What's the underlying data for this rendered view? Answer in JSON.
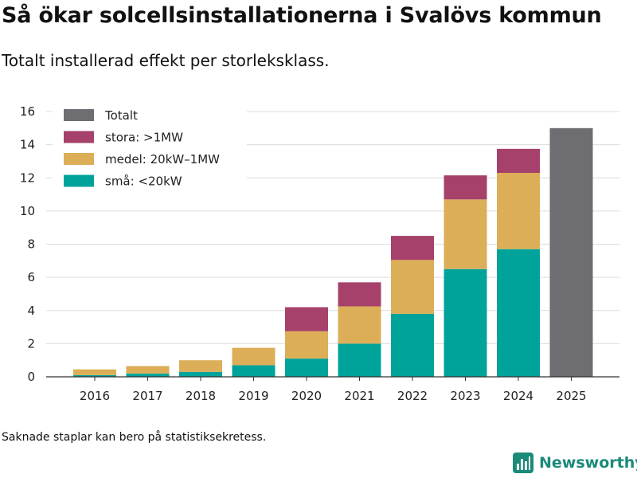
{
  "header": {
    "title": "Så ökar solcellsinstallationerna i Svalövs kommun",
    "subtitle": "Totalt installerad effekt per storleksklass."
  },
  "footnote": "Saknade staplar kan bero på statistiksekretess.",
  "brand": {
    "name": "Newsworthy",
    "logo_icon": "bar-chart-logo-icon",
    "color": "#1a8a7a"
  },
  "chart_data": {
    "type": "bar",
    "stacked": true,
    "title": "Så ökar solcellsinstallationerna i Svalövs kommun",
    "subtitle": "Totalt installerad effekt per storleksklass.",
    "xlabel": "",
    "ylabel": "",
    "ylim": [
      0,
      16
    ],
    "yticks": [
      0,
      2,
      4,
      6,
      8,
      10,
      12,
      14,
      16
    ],
    "grid": true,
    "legend_position": "top-left",
    "categories": [
      "2016",
      "2017",
      "2018",
      "2019",
      "2020",
      "2021",
      "2022",
      "2023",
      "2024",
      "2025"
    ],
    "series": [
      {
        "name": "små: <20kW",
        "color": "#00a39a",
        "values": [
          0.1,
          0.2,
          0.3,
          0.7,
          1.1,
          2.0,
          3.8,
          6.5,
          7.7,
          null
        ]
      },
      {
        "name": "medel: 20kW–1MW",
        "color": "#dcae58",
        "values": [
          0.35,
          0.45,
          0.7,
          1.05,
          1.65,
          2.25,
          3.25,
          4.2,
          4.6,
          null
        ]
      },
      {
        "name": "stora: >1MW",
        "color": "#a5416a",
        "values": [
          0,
          0,
          0,
          0,
          1.45,
          1.45,
          1.45,
          1.45,
          1.45,
          null
        ]
      },
      {
        "name": "Totalt",
        "color": "#6e6d72",
        "values": [
          null,
          null,
          null,
          null,
          null,
          null,
          null,
          null,
          null,
          15.0
        ]
      }
    ],
    "legend_order": [
      "Totalt",
      "stora: >1MW",
      "medel: 20kW–1MW",
      "små: <20kW"
    ]
  }
}
